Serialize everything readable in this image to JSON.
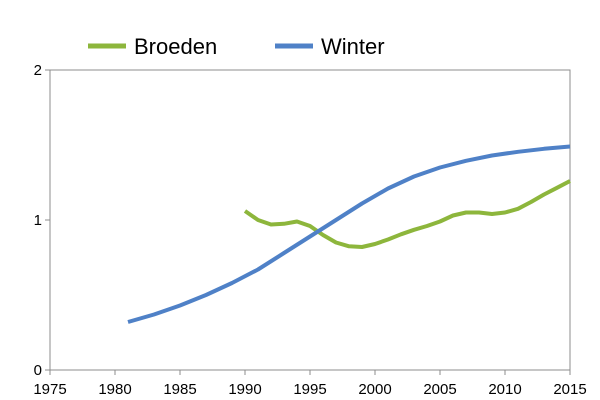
{
  "chart_data": {
    "type": "line",
    "title": "",
    "xlabel": "",
    "ylabel": "",
    "xlim": [
      1975,
      2015
    ],
    "ylim": [
      0,
      2
    ],
    "xticks": [
      "1975",
      "1980",
      "1985",
      "1990",
      "1995",
      "2000",
      "2005",
      "2010",
      "2015"
    ],
    "yticks": [
      "0",
      "1",
      "2"
    ],
    "grid": false,
    "legend_position": "top",
    "series": [
      {
        "name": "Broeden",
        "color": "#8DB63C",
        "x": [
          1990,
          1991,
          1992,
          1993,
          1994,
          1995,
          1996,
          1997,
          1998,
          1999,
          2000,
          2001,
          2002,
          2003,
          2004,
          2005,
          2006,
          2007,
          2008,
          2009,
          2010,
          2011,
          2012,
          2013,
          2014,
          2015
        ],
        "y": [
          1.06,
          1.0,
          0.97,
          0.975,
          0.99,
          0.96,
          0.9,
          0.85,
          0.825,
          0.82,
          0.84,
          0.87,
          0.905,
          0.935,
          0.96,
          0.99,
          1.03,
          1.05,
          1.05,
          1.04,
          1.05,
          1.075,
          1.12,
          1.17,
          1.215,
          1.26
        ]
      },
      {
        "name": "Winter",
        "color": "#4F81C7",
        "x": [
          1981,
          1983,
          1985,
          1987,
          1989,
          1991,
          1993,
          1995,
          1997,
          1999,
          2001,
          2003,
          2005,
          2007,
          2009,
          2011,
          2013,
          2015
        ],
        "y": [
          0.32,
          0.37,
          0.43,
          0.5,
          0.58,
          0.67,
          0.78,
          0.89,
          1.0,
          1.11,
          1.21,
          1.29,
          1.35,
          1.395,
          1.43,
          1.455,
          1.475,
          1.49
        ]
      }
    ]
  }
}
